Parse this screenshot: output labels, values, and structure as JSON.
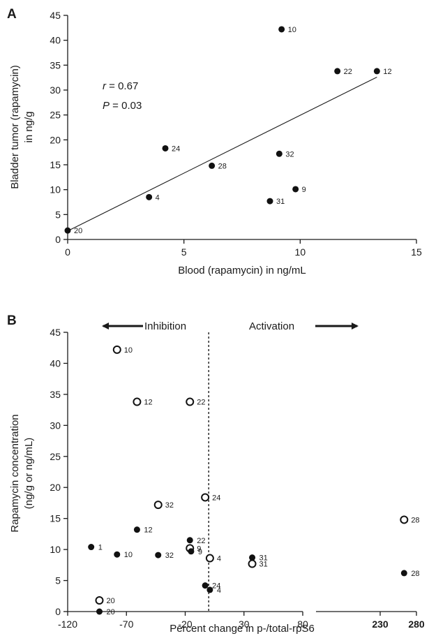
{
  "chart_data": [
    {
      "panel": "A",
      "type": "scatter",
      "xlabel": "Blood (rapamycin) in ng/mL",
      "ylabel": [
        "Bladder tumor (rapamycin)",
        "in ng/g"
      ],
      "xlim": [
        0,
        15
      ],
      "ylim": [
        0,
        45
      ],
      "xticks": [
        0,
        5,
        10,
        15
      ],
      "yticks": [
        0,
        5,
        10,
        15,
        20,
        25,
        30,
        35,
        40,
        45
      ],
      "grid": false,
      "annotations": {
        "r_symbol": "r",
        "r_text": " = 0.67",
        "p_symbol": "P",
        "p_text": " = 0.03"
      },
      "points": [
        {
          "x": 0,
          "y": 1.8,
          "label": "20"
        },
        {
          "x": 3.5,
          "y": 8.5,
          "label": "4"
        },
        {
          "x": 4.2,
          "y": 18.3,
          "label": "24"
        },
        {
          "x": 6.2,
          "y": 14.8,
          "label": "28"
        },
        {
          "x": 8.7,
          "y": 7.7,
          "label": "31"
        },
        {
          "x": 9.1,
          "y": 17.2,
          "label": "32"
        },
        {
          "x": 9.2,
          "y": 42.2,
          "label": "10"
        },
        {
          "x": 9.8,
          "y": 10.1,
          "label": "9"
        },
        {
          "x": 11.6,
          "y": 33.8,
          "label": "22"
        },
        {
          "x": 13.3,
          "y": 33.8,
          "label": "12"
        }
      ],
      "fit_line": {
        "x": [
          0,
          13.3
        ],
        "y": [
          1.7,
          32.6
        ]
      }
    },
    {
      "panel": "B",
      "type": "scatter",
      "xlabel": "Percent change in p-/total-rpS6",
      "ylabel": [
        "Rapamycin concentration",
        "(ng/g or ng/mL)"
      ],
      "x_segments": [
        {
          "range": [
            -120,
            80
          ],
          "ticks": [
            -120,
            -70,
            -20,
            30,
            80
          ],
          "bold_ticks": false
        },
        {
          "range": [
            205,
            280
          ],
          "ticks": [
            230,
            280
          ],
          "bold_ticks": true
        }
      ],
      "ylim": [
        0,
        45
      ],
      "yticks": [
        0,
        5,
        10,
        15,
        20,
        25,
        30,
        35,
        40,
        45
      ],
      "reference_line_x": 0,
      "grid": false,
      "arrows": {
        "left": "Inhibition",
        "right": "Activation"
      },
      "series": [
        {
          "marker": "open",
          "points": [
            {
              "x": -78,
              "y": 42.2,
              "label": "10"
            },
            {
              "x": -61,
              "y": 33.8,
              "label": "12"
            },
            {
              "x": -16,
              "y": 33.8,
              "label": "22"
            },
            {
              "x": -3,
              "y": 18.4,
              "label": "24"
            },
            {
              "x": -43,
              "y": 17.2,
              "label": "32"
            },
            {
              "x": -16,
              "y": 10.2,
              "label": "9"
            },
            {
              "x": 1,
              "y": 8.6,
              "label": "4"
            },
            {
              "x": 37,
              "y": 7.7,
              "label": "31"
            },
            {
              "x": -93,
              "y": 1.8,
              "label": "20"
            },
            {
              "x": 263,
              "y": 14.8,
              "label": "28"
            }
          ]
        },
        {
          "marker": "filled",
          "points": [
            {
              "x": -100,
              "y": 10.4,
              "label": "1"
            },
            {
              "x": -78,
              "y": 9.2,
              "label": "10"
            },
            {
              "x": -61,
              "y": 13.2,
              "label": "12"
            },
            {
              "x": -16,
              "y": 11.5,
              "label": "22"
            },
            {
              "x": -15,
              "y": 9.7,
              "label": "9"
            },
            {
              "x": -43,
              "y": 9.1,
              "label": "32"
            },
            {
              "x": 37,
              "y": 8.7,
              "label": "31"
            },
            {
              "x": -3,
              "y": 4.2,
              "label": "24"
            },
            {
              "x": 1,
              "y": 3.5,
              "label": "4"
            },
            {
              "x": -93,
              "y": 0,
              "label": "20"
            },
            {
              "x": 263,
              "y": 6.2,
              "label": "28"
            }
          ]
        }
      ]
    }
  ]
}
